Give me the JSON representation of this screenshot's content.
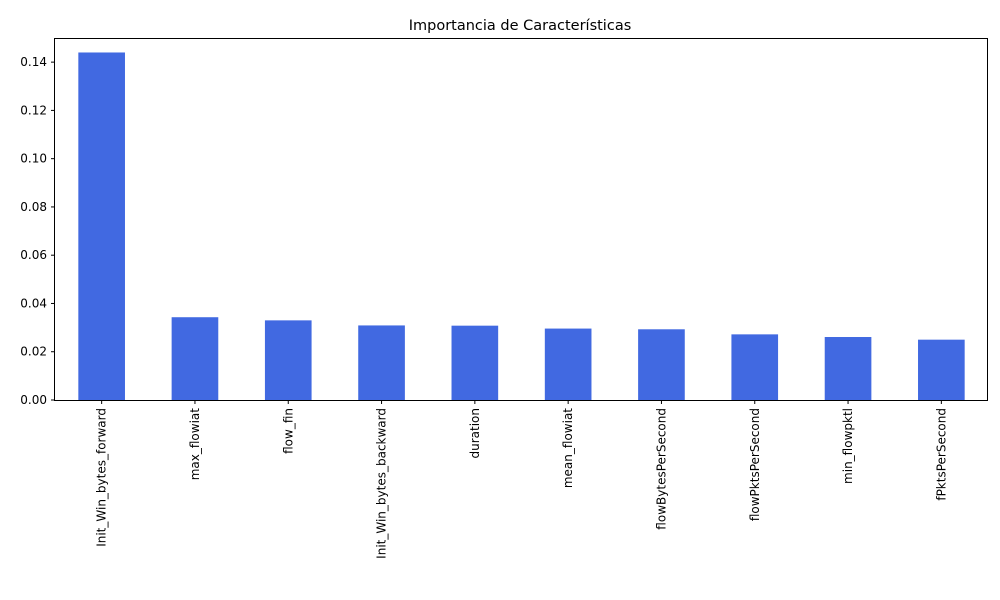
{
  "chart_data": {
    "type": "bar",
    "title": "Importancia de Características",
    "xlabel": "",
    "ylabel": "",
    "categories": [
      "Init_Win_bytes_forward",
      "max_flowiat",
      "flow_fin",
      "Init_Win_bytes_backward",
      "duration",
      "mean_flowiat",
      "flowBytesPerSecond",
      "flowPktsPerSecond",
      "min_flowpktl",
      "fPktsPerSecond"
    ],
    "values": [
      0.144,
      0.0343,
      0.033,
      0.0309,
      0.0308,
      0.0296,
      0.0293,
      0.0272,
      0.0261,
      0.025
    ],
    "ylim": [
      0,
      0.15
    ],
    "yticks": [
      0.0,
      0.02,
      0.04,
      0.06,
      0.08,
      0.1,
      0.12,
      0.14
    ],
    "ytick_labels": [
      "0.00",
      "0.02",
      "0.04",
      "0.06",
      "0.08",
      "0.10",
      "0.12",
      "0.14"
    ],
    "bar_color": "#4169e1",
    "grid": false,
    "legend": "none"
  }
}
